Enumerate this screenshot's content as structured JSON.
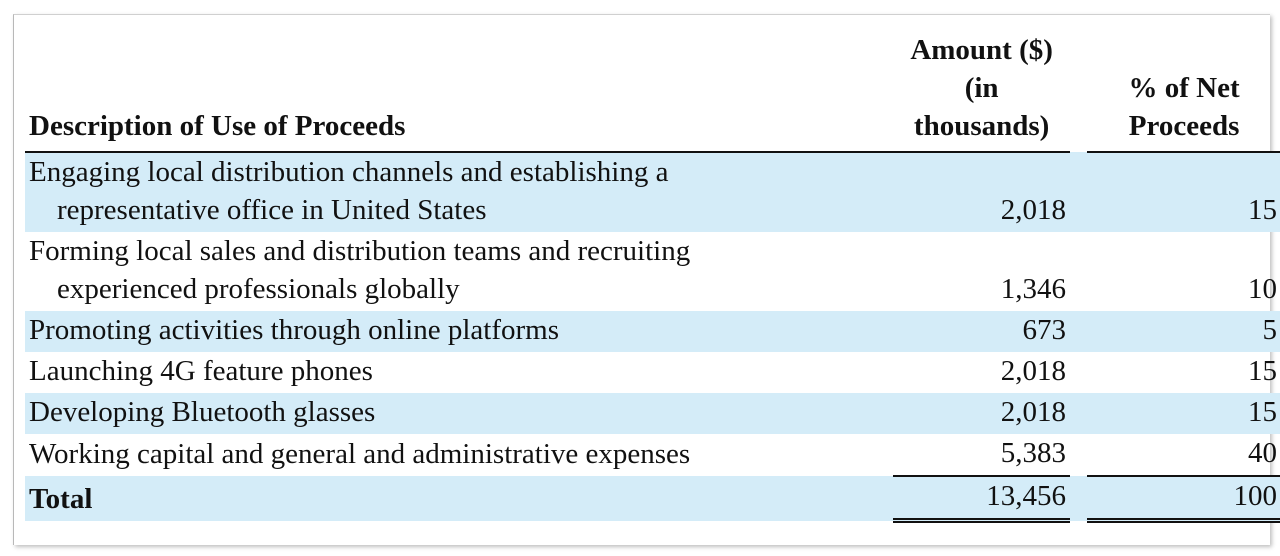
{
  "table": {
    "headers": {
      "description": "Description of Use of Proceeds",
      "amount_line1": "Amount ($)",
      "amount_line2": "(in",
      "amount_line3": "thousands)",
      "percent_line1": "% of Net",
      "percent_line2": "Proceeds"
    },
    "rows": [
      {
        "line1": "Engaging local distribution channels and establishing a",
        "line2": "representative office in United States",
        "amount": "2,018",
        "percent": "15"
      },
      {
        "line1": "Forming local sales and distribution teams and recruiting",
        "line2": "experienced professionals globally",
        "amount": "1,346",
        "percent": "10"
      },
      {
        "line1": "Promoting activities through online platforms",
        "amount": "673",
        "percent": "5"
      },
      {
        "line1": "Launching 4G feature phones",
        "amount": "2,018",
        "percent": "15"
      },
      {
        "line1": "Developing Bluetooth glasses",
        "amount": "2,018",
        "percent": "15"
      },
      {
        "line1": "Working capital and general and administrative expenses",
        "amount": "5,383",
        "percent": "40"
      }
    ],
    "total": {
      "label": "Total",
      "amount": "13,456",
      "percent": "100"
    }
  },
  "colors": {
    "row_shade": "#d4ecf8"
  }
}
